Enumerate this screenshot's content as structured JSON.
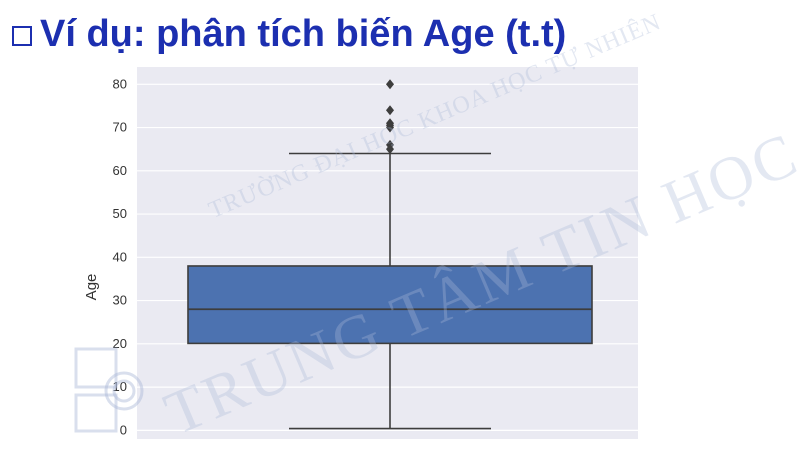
{
  "slide": {
    "title": "Ví dụ: phân tích biến Age (t.t)"
  },
  "watermark": {
    "line1": "TRƯỜNG ĐẠI HỌC KHOA HỌC TỰ NHIÊN",
    "line2": "TRUNG TÂM TIN HỌC",
    "logo_letters": "TT TH"
  },
  "chart_data": {
    "type": "box",
    "ylabel": "Age",
    "xlabel": "",
    "ylim": [
      -2,
      84
    ],
    "yticks": [
      0,
      10,
      20,
      30,
      40,
      50,
      60,
      70,
      80
    ],
    "grid": true,
    "series": [
      {
        "whisker_low": 0.42,
        "q1": 20.1,
        "median": 28,
        "q3": 38,
        "whisker_high": 64,
        "outliers": [
          65,
          66,
          70,
          70.5,
          71,
          74,
          80
        ]
      }
    ],
    "colors": {
      "box": "#4c72b0",
      "background": "#eaeaf2",
      "grid": "#ffffff",
      "line": "#3d3d3d"
    }
  }
}
